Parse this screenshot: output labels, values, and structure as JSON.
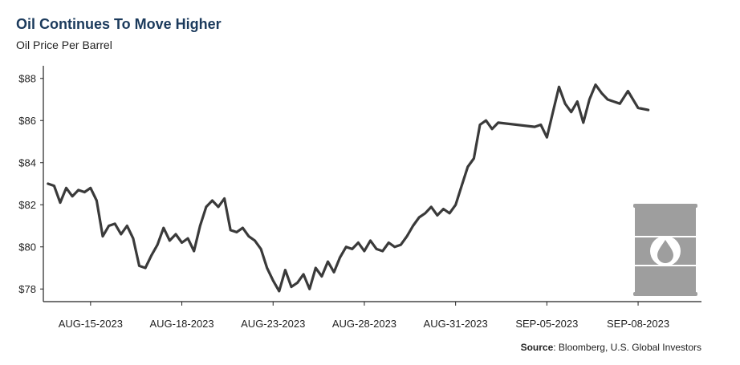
{
  "title": "Oil Continues To Move Higher",
  "subtitle": "Oil Price Per Barrel",
  "source": {
    "label": "Source",
    "text": ": Bloomberg, U.S. Global Investors"
  },
  "colors": {
    "line": "#3a3a3a",
    "title": "#1b3a5c",
    "axis": "#222222",
    "barrel": "#9e9e9e"
  },
  "icon": "oil-barrel-icon",
  "chart_data": {
    "type": "line",
    "title": "Oil Continues To Move Higher",
    "subtitle": "Oil Price Per Barrel",
    "xlabel": "",
    "ylabel": "",
    "ylim": [
      77.4,
      88.6
    ],
    "y_ticks": [
      78,
      80,
      82,
      84,
      86,
      88
    ],
    "y_tick_labels": [
      "$78",
      "$80",
      "$82",
      "$84",
      "$86",
      "$88"
    ],
    "x_ticks": [
      "2023-08-15",
      "2023-08-18",
      "2023-08-23",
      "2023-08-28",
      "2023-08-31",
      "2023-09-05",
      "2023-09-08"
    ],
    "x_tick_labels": [
      "AUG-15-2023",
      "AUG-18-2023",
      "AUG-23-2023",
      "AUG-28-2023",
      "AUG-31-2023",
      "SEP-05-2023",
      "SEP-08-2023"
    ],
    "grid": false,
    "legend": "none",
    "series": [
      {
        "x": [
          "2023-08-14",
          "2023-08-14",
          "2023-08-14",
          "2023-08-14",
          "2023-08-14",
          "2023-08-15",
          "2023-08-15",
          "2023-08-15",
          "2023-08-15",
          "2023-08-15",
          "2023-08-16",
          "2023-08-16",
          "2023-08-16",
          "2023-08-16",
          "2023-08-16",
          "2023-08-17",
          "2023-08-17",
          "2023-08-17",
          "2023-08-17",
          "2023-08-17",
          "2023-08-18",
          "2023-08-18",
          "2023-08-18",
          "2023-08-18",
          "2023-08-18",
          "2023-08-21",
          "2023-08-21",
          "2023-08-21",
          "2023-08-21",
          "2023-08-21",
          "2023-08-22",
          "2023-08-22",
          "2023-08-22",
          "2023-08-22",
          "2023-08-22",
          "2023-08-23",
          "2023-08-23",
          "2023-08-23",
          "2023-08-23",
          "2023-08-23",
          "2023-08-24",
          "2023-08-24",
          "2023-08-24",
          "2023-08-24",
          "2023-08-24",
          "2023-08-25",
          "2023-08-25",
          "2023-08-25",
          "2023-08-25",
          "2023-08-25",
          "2023-08-28",
          "2023-08-28",
          "2023-08-28",
          "2023-08-28",
          "2023-08-28",
          "2023-08-29",
          "2023-08-29",
          "2023-08-29",
          "2023-08-29",
          "2023-08-29",
          "2023-08-30",
          "2023-08-30",
          "2023-08-30",
          "2023-08-30",
          "2023-08-30",
          "2023-08-31",
          "2023-08-31",
          "2023-08-31",
          "2023-08-31",
          "2023-08-31",
          "2023-09-01",
          "2023-09-01",
          "2023-09-01",
          "2023-09-01",
          "2023-09-01",
          "2023-09-05",
          "2023-09-05",
          "2023-09-05",
          "2023-09-05",
          "2023-09-05",
          "2023-09-06",
          "2023-09-06",
          "2023-09-06",
          "2023-09-06",
          "2023-09-06",
          "2023-09-07",
          "2023-09-07",
          "2023-09-07",
          "2023-09-07",
          "2023-09-07",
          "2023-09-08",
          "2023-09-08",
          "2023-09-08"
        ],
        "values": [
          83.0,
          82.9,
          82.1,
          82.8,
          82.4,
          82.7,
          82.6,
          82.8,
          82.2,
          80.5,
          81.0,
          81.1,
          80.6,
          81.0,
          80.4,
          79.1,
          79.0,
          79.6,
          80.1,
          80.9,
          80.3,
          80.6,
          80.2,
          80.4,
          79.8,
          81.0,
          81.9,
          82.2,
          81.9,
          82.3,
          80.8,
          80.7,
          80.9,
          80.5,
          80.3,
          79.9,
          79.0,
          78.4,
          77.9,
          78.9,
          78.1,
          78.3,
          78.7,
          78.0,
          79.0,
          78.6,
          79.3,
          78.8,
          79.5,
          80.0,
          79.9,
          80.2,
          79.8,
          80.3,
          79.9,
          79.8,
          80.2,
          80.0,
          80.1,
          80.5,
          81.0,
          81.4,
          81.6,
          81.9,
          81.5,
          81.8,
          81.6,
          82.0,
          82.9,
          83.8,
          84.2,
          85.8,
          86.0,
          85.6,
          85.9,
          85.7,
          85.8,
          85.2,
          86.4,
          87.6,
          86.8,
          86.4,
          86.9,
          85.9,
          87.0,
          87.7,
          87.3,
          87.0,
          86.9,
          86.8,
          87.4,
          86.6,
          86.5
        ]
      }
    ]
  }
}
